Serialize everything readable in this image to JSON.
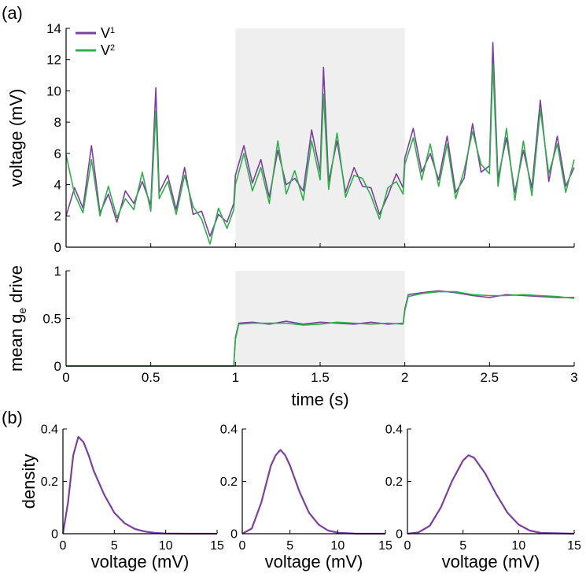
{
  "panel_labels": {
    "a": "(a)",
    "b": "(b)"
  },
  "colors": {
    "V1": "#7b3fa0",
    "V2": "#2fae4a",
    "shade": "#efefef",
    "axis": "#000000"
  },
  "chart_data": [
    {
      "type": "line",
      "name": "voltage-trace",
      "ylabel": "voltage (mV)",
      "xlim": [
        0,
        3
      ],
      "ylim": [
        0,
        14
      ],
      "yticks": [
        0,
        2,
        4,
        6,
        8,
        10,
        12,
        14
      ],
      "xticks": [
        0,
        0.5,
        1,
        1.5,
        2,
        2.5,
        3
      ],
      "shaded_interval": [
        1,
        2
      ],
      "legend": {
        "placement": "top-left",
        "entries": [
          {
            "label": "V",
            "sub": "1"
          },
          {
            "label": "V",
            "sub": "2"
          }
        ]
      },
      "series": [
        {
          "name": "V1",
          "x": [
            0,
            0.05,
            0.1,
            0.15,
            0.2,
            0.25,
            0.3,
            0.35,
            0.4,
            0.45,
            0.5,
            0.53,
            0.55,
            0.6,
            0.65,
            0.7,
            0.75,
            0.8,
            0.85,
            0.9,
            0.95,
            0.99,
            1.0,
            1.05,
            1.1,
            1.15,
            1.2,
            1.25,
            1.3,
            1.35,
            1.4,
            1.45,
            1.5,
            1.52,
            1.55,
            1.6,
            1.65,
            1.7,
            1.75,
            1.8,
            1.85,
            1.9,
            1.95,
            1.99,
            2.0,
            2.05,
            2.1,
            2.15,
            2.2,
            2.25,
            2.3,
            2.35,
            2.4,
            2.45,
            2.5,
            2.52,
            2.55,
            2.6,
            2.65,
            2.7,
            2.75,
            2.8,
            2.85,
            2.9,
            2.95,
            3.0
          ],
          "y": [
            2.0,
            3.8,
            2.5,
            6.5,
            2.2,
            3.4,
            1.6,
            3.6,
            2.8,
            4.2,
            2.7,
            10.2,
            3.5,
            4.6,
            2.4,
            5.1,
            2.1,
            2.3,
            0.7,
            2.1,
            1.6,
            2.8,
            4.6,
            6.5,
            4.1,
            5.6,
            3.2,
            6.2,
            4.0,
            4.4,
            3.6,
            7.5,
            4.8,
            11.5,
            4.2,
            6.8,
            3.5,
            5.1,
            3.9,
            3.8,
            2.1,
            3.3,
            4.7,
            3.8,
            5.7,
            7.6,
            4.8,
            6.0,
            4.3,
            7.1,
            3.5,
            4.4,
            7.9,
            4.8,
            5.2,
            13.1,
            4.4,
            7.0,
            3.5,
            6.2,
            3.8,
            9.4,
            4.2,
            7.1,
            3.9,
            5.1
          ]
        },
        {
          "name": "V2",
          "x": [
            0,
            0.05,
            0.1,
            0.15,
            0.2,
            0.25,
            0.3,
            0.35,
            0.4,
            0.45,
            0.5,
            0.53,
            0.55,
            0.6,
            0.65,
            0.7,
            0.75,
            0.8,
            0.85,
            0.9,
            0.95,
            0.99,
            1.0,
            1.05,
            1.1,
            1.15,
            1.2,
            1.25,
            1.3,
            1.35,
            1.4,
            1.45,
            1.5,
            1.52,
            1.55,
            1.6,
            1.65,
            1.7,
            1.75,
            1.8,
            1.85,
            1.9,
            1.95,
            1.99,
            2.0,
            2.05,
            2.1,
            2.15,
            2.2,
            2.25,
            2.3,
            2.35,
            2.4,
            2.45,
            2.5,
            2.52,
            2.55,
            2.6,
            2.65,
            2.7,
            2.75,
            2.8,
            2.85,
            2.9,
            2.95,
            3.0
          ],
          "y": [
            5.9,
            3.4,
            2.2,
            5.6,
            2.0,
            3.9,
            1.9,
            3.1,
            2.4,
            4.8,
            2.3,
            8.7,
            3.1,
            4.2,
            2.1,
            4.6,
            2.6,
            1.8,
            0.2,
            2.5,
            1.2,
            2.4,
            4.0,
            6.0,
            3.6,
            5.1,
            2.8,
            6.8,
            3.4,
            4.9,
            3.0,
            6.8,
            4.3,
            9.8,
            3.7,
            7.3,
            3.2,
            4.6,
            4.4,
            3.3,
            1.8,
            3.8,
            4.2,
            3.4,
            5.3,
            7.0,
            4.3,
            6.6,
            3.9,
            6.6,
            3.1,
            4.9,
            7.4,
            5.3,
            4.7,
            11.7,
            3.9,
            7.6,
            3.0,
            6.8,
            3.3,
            8.8,
            4.7,
            6.6,
            3.5,
            5.6
          ]
        }
      ]
    },
    {
      "type": "line",
      "name": "ge-drive",
      "ylabel": "mean g",
      "ylabel_sub": "e",
      "ylabel_tail": " drive",
      "xlabel": "time (s)",
      "xlim": [
        0,
        3
      ],
      "ylim": [
        0,
        1
      ],
      "yticks": [
        0,
        0.5,
        1
      ],
      "xticks": [
        0,
        0.5,
        1,
        1.5,
        2,
        2.5,
        3
      ],
      "shaded_interval": [
        1,
        2
      ],
      "series": [
        {
          "name": "V1",
          "x": [
            0,
            0.99,
            1.0,
            1.02,
            1.1,
            1.2,
            1.3,
            1.4,
            1.5,
            1.6,
            1.7,
            1.8,
            1.9,
            1.99,
            2.0,
            2.02,
            2.1,
            2.2,
            2.3,
            2.4,
            2.5,
            2.6,
            2.7,
            2.8,
            2.9,
            3.0
          ],
          "y": [
            0,
            0,
            0.3,
            0.45,
            0.46,
            0.44,
            0.47,
            0.44,
            0.46,
            0.45,
            0.44,
            0.46,
            0.44,
            0.45,
            0.6,
            0.75,
            0.77,
            0.79,
            0.77,
            0.74,
            0.72,
            0.75,
            0.74,
            0.73,
            0.72,
            0.72
          ]
        },
        {
          "name": "V2",
          "x": [
            0,
            0.99,
            1.0,
            1.02,
            1.1,
            1.2,
            1.3,
            1.4,
            1.5,
            1.6,
            1.7,
            1.8,
            1.9,
            1.99,
            2.0,
            2.02,
            2.1,
            2.2,
            2.3,
            2.4,
            2.5,
            2.6,
            2.7,
            2.8,
            2.9,
            3.0
          ],
          "y": [
            0,
            0,
            0.28,
            0.44,
            0.45,
            0.45,
            0.45,
            0.43,
            0.44,
            0.46,
            0.45,
            0.44,
            0.45,
            0.44,
            0.58,
            0.73,
            0.76,
            0.78,
            0.78,
            0.75,
            0.74,
            0.74,
            0.75,
            0.74,
            0.73,
            0.71
          ]
        }
      ]
    },
    {
      "type": "line",
      "name": "density-1",
      "ylabel": "density",
      "xlabel": "voltage (mV)",
      "xlim": [
        0,
        15
      ],
      "ylim": [
        0,
        0.4
      ],
      "xticks": [
        0,
        5,
        10,
        15
      ],
      "yticks": [
        0,
        0.2,
        0.4
      ],
      "series": [
        {
          "name": "V1",
          "x": [
            0,
            0.5,
            1,
            1.5,
            2,
            2.5,
            3,
            4,
            5,
            6,
            7,
            8,
            9,
            10,
            12,
            15
          ],
          "y": [
            0,
            0.12,
            0.3,
            0.37,
            0.35,
            0.3,
            0.24,
            0.15,
            0.08,
            0.04,
            0.018,
            0.008,
            0.003,
            0.001,
            0,
            0
          ]
        }
      ]
    },
    {
      "type": "line",
      "name": "density-2",
      "xlabel": "voltage (mV)",
      "xlim": [
        0,
        15
      ],
      "ylim": [
        0,
        0.4
      ],
      "xticks": [
        0,
        5,
        10,
        15
      ],
      "yticks": [
        0,
        0.2,
        0.4
      ],
      "series": [
        {
          "name": "V1",
          "x": [
            0,
            1,
            2,
            3,
            3.5,
            4,
            4.5,
            5,
            6,
            7,
            8,
            9,
            10,
            12,
            15
          ],
          "y": [
            0,
            0.02,
            0.12,
            0.26,
            0.3,
            0.32,
            0.3,
            0.26,
            0.16,
            0.08,
            0.035,
            0.012,
            0.004,
            0,
            0
          ]
        }
      ]
    },
    {
      "type": "line",
      "name": "density-3",
      "xlabel": "voltage (mV)",
      "xlim": [
        0,
        15
      ],
      "ylim": [
        0,
        0.4
      ],
      "xticks": [
        0,
        5,
        10,
        15
      ],
      "yticks": [
        0,
        0.2,
        0.4
      ],
      "series": [
        {
          "name": "V1",
          "x": [
            0,
            1,
            2,
            3,
            4,
            5,
            5.5,
            6,
            7,
            8,
            9,
            10,
            11,
            12,
            15
          ],
          "y": [
            0,
            0.005,
            0.03,
            0.1,
            0.2,
            0.28,
            0.3,
            0.29,
            0.23,
            0.15,
            0.08,
            0.035,
            0.012,
            0.003,
            0
          ]
        }
      ]
    }
  ]
}
